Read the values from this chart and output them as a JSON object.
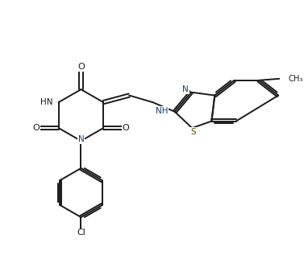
{
  "bg_color": "#ffffff",
  "line_color": "#1a1a1a",
  "s_color": "#5c4a00",
  "n_color": "#1a3a6e",
  "line_width": 1.4,
  "figsize": [
    3.77,
    3.33
  ],
  "dpi": 100,
  "xlim": [
    0,
    9.5
  ],
  "ylim": [
    0,
    8.5
  ]
}
